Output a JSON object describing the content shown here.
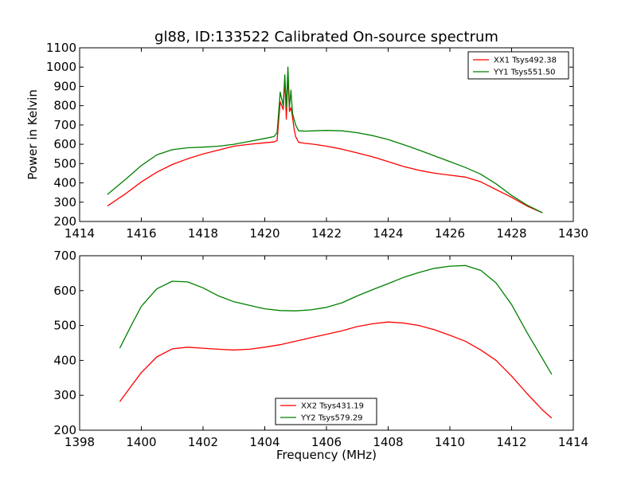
{
  "chart_data": [
    {
      "type": "line",
      "title": "gl88, ID:133522 Calibrated On-source spectrum",
      "xlabel": "",
      "ylabel": "Power in Kelvin",
      "xlim": [
        1414,
        1430
      ],
      "ylim": [
        200,
        1100
      ],
      "xticks": [
        1414,
        1416,
        1418,
        1420,
        1422,
        1424,
        1426,
        1428,
        1430
      ],
      "yticks": [
        200,
        300,
        400,
        500,
        600,
        700,
        800,
        900,
        1000,
        1100
      ],
      "legend_position": "top-right",
      "series": [
        {
          "name": "XX1 Tsys492.38",
          "color": "#ff0000",
          "x": [
            1414.9,
            1415.5,
            1416.0,
            1416.5,
            1417.0,
            1417.5,
            1418.0,
            1418.5,
            1419.0,
            1419.5,
            1420.0,
            1420.3,
            1420.4,
            1420.5,
            1420.6,
            1420.65,
            1420.7,
            1420.75,
            1420.8,
            1420.85,
            1420.9,
            1420.95,
            1421.0,
            1421.1,
            1421.3,
            1421.6,
            1422.0,
            1422.5,
            1423.0,
            1423.5,
            1424.0,
            1424.5,
            1425.0,
            1425.5,
            1426.0,
            1426.5,
            1427.0,
            1427.5,
            1428.0,
            1428.5,
            1429.0
          ],
          "values": [
            280,
            345,
            405,
            455,
            495,
            525,
            550,
            570,
            590,
            600,
            608,
            612,
            620,
            820,
            780,
            940,
            730,
            960,
            770,
            790,
            740,
            680,
            640,
            610,
            605,
            600,
            590,
            575,
            555,
            535,
            510,
            485,
            465,
            450,
            440,
            430,
            405,
            365,
            325,
            280,
            245
          ]
        },
        {
          "name": "YY1 Tsys551.50",
          "color": "#008000",
          "x": [
            1414.9,
            1415.5,
            1416.0,
            1416.5,
            1417.0,
            1417.5,
            1418.0,
            1418.5,
            1419.0,
            1419.5,
            1420.0,
            1420.3,
            1420.4,
            1420.5,
            1420.6,
            1420.65,
            1420.7,
            1420.75,
            1420.8,
            1420.85,
            1420.9,
            1420.95,
            1421.0,
            1421.1,
            1421.3,
            1421.6,
            1422.0,
            1422.5,
            1423.0,
            1423.5,
            1424.0,
            1424.5,
            1425.0,
            1425.5,
            1426.0,
            1426.5,
            1427.0,
            1427.5,
            1428.0,
            1428.5,
            1429.0
          ],
          "values": [
            340,
            420,
            490,
            545,
            572,
            582,
            585,
            590,
            600,
            615,
            630,
            640,
            660,
            870,
            800,
            960,
            790,
            1000,
            790,
            880,
            760,
            730,
            700,
            670,
            668,
            670,
            672,
            670,
            660,
            645,
            625,
            598,
            570,
            540,
            510,
            480,
            445,
            395,
            335,
            285,
            245
          ]
        }
      ]
    },
    {
      "type": "line",
      "title": "",
      "xlabel": "Frequency (MHz)",
      "ylabel": "",
      "xlim": [
        1398,
        1414
      ],
      "ylim": [
        200,
        700
      ],
      "xticks": [
        1398,
        1400,
        1402,
        1404,
        1406,
        1408,
        1410,
        1412,
        1414
      ],
      "yticks": [
        200,
        300,
        400,
        500,
        600,
        700
      ],
      "legend_position": "bottom-center",
      "series": [
        {
          "name": "XX2 Tsys431.19",
          "color": "#ff0000",
          "x": [
            1399.3,
            1399.7,
            1400.0,
            1400.5,
            1401.0,
            1401.5,
            1402.0,
            1402.5,
            1403.0,
            1403.5,
            1404.0,
            1404.5,
            1405.0,
            1405.5,
            1406.0,
            1406.5,
            1407.0,
            1407.5,
            1408.0,
            1408.5,
            1409.0,
            1409.5,
            1410.0,
            1410.5,
            1411.0,
            1411.5,
            1412.0,
            1412.5,
            1413.0,
            1413.3
          ],
          "values": [
            282,
            330,
            365,
            410,
            433,
            438,
            435,
            432,
            430,
            432,
            438,
            445,
            455,
            465,
            475,
            485,
            497,
            505,
            510,
            507,
            500,
            488,
            472,
            455,
            430,
            400,
            355,
            305,
            258,
            235
          ]
        },
        {
          "name": "YY2 Tsys579.29",
          "color": "#008000",
          "x": [
            1399.3,
            1399.7,
            1400.0,
            1400.5,
            1401.0,
            1401.5,
            1402.0,
            1402.5,
            1403.0,
            1403.5,
            1404.0,
            1404.5,
            1405.0,
            1405.5,
            1406.0,
            1406.5,
            1407.0,
            1407.5,
            1408.0,
            1408.5,
            1409.0,
            1409.5,
            1410.0,
            1410.5,
            1411.0,
            1411.5,
            1412.0,
            1412.5,
            1413.0,
            1413.3
          ],
          "values": [
            435,
            505,
            555,
            605,
            627,
            625,
            608,
            585,
            568,
            558,
            548,
            543,
            542,
            545,
            552,
            565,
            585,
            603,
            620,
            638,
            652,
            664,
            670,
            672,
            658,
            622,
            560,
            480,
            405,
            360
          ]
        }
      ]
    }
  ]
}
